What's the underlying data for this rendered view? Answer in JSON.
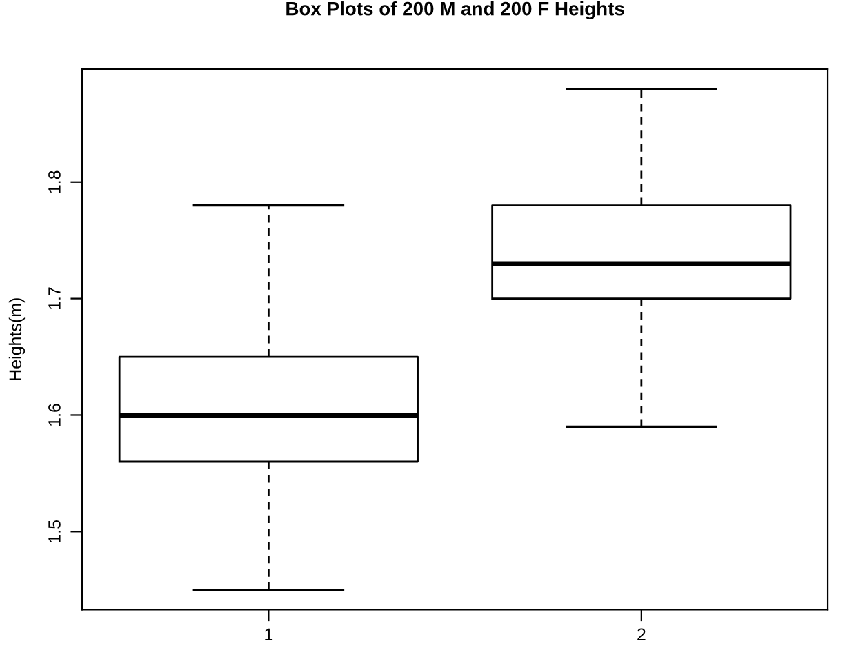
{
  "chart_data": {
    "type": "box",
    "title": "Box Plots of 200 M and 200 F Heights",
    "ylabel": "Heights(m)",
    "categories": [
      "1",
      "2"
    ],
    "boxes": [
      {
        "low": 1.45,
        "q1": 1.56,
        "median": 1.6,
        "q3": 1.65,
        "high": 1.78
      },
      {
        "low": 1.59,
        "q1": 1.7,
        "median": 1.73,
        "q3": 1.78,
        "high": 1.88
      }
    ],
    "ylim": [
      1.433,
      1.897
    ],
    "yticks": [
      1.5,
      1.6,
      1.7,
      1.8
    ],
    "grid": false,
    "legend": false
  }
}
